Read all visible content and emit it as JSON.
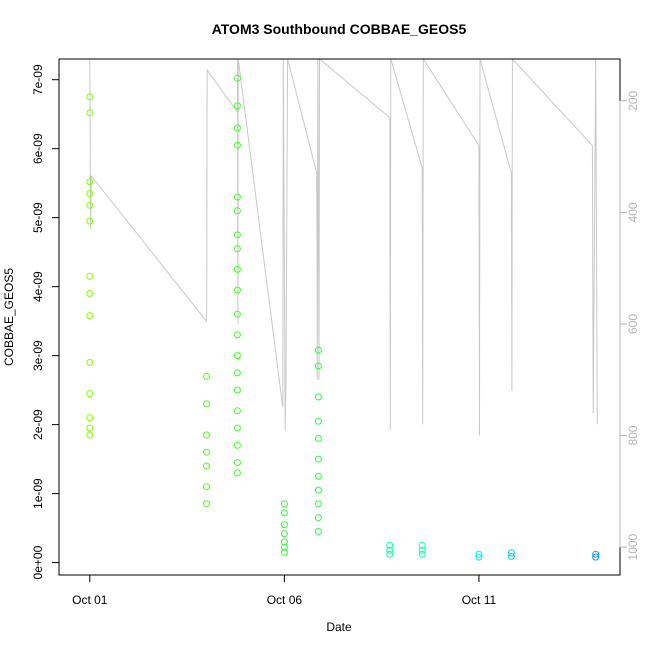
{
  "chart_data": {
    "type": "scatter",
    "title": "ATOM3 Southbound COBBAE_GEOS5",
    "xlabel": "Date",
    "ylabel": "COBBAE_GEOS5",
    "x_ticks": [
      {
        "value": "2016-10-01",
        "label": "Oct 01"
      },
      {
        "value": "2016-10-06",
        "label": "Oct 06"
      },
      {
        "value": "2016-10-11",
        "label": "Oct 11"
      }
    ],
    "y_ticks": [
      {
        "value": 0,
        "label": "0e+00"
      },
      {
        "value": 1e-09,
        "label": "1e-09"
      },
      {
        "value": 2e-09,
        "label": "2e-09"
      },
      {
        "value": 3e-09,
        "label": "3e-09"
      },
      {
        "value": 4e-09,
        "label": "4e-09"
      },
      {
        "value": 5e-09,
        "label": "5e-09"
      },
      {
        "value": 6e-09,
        "label": "6e-09"
      },
      {
        "value": 7e-09,
        "label": "7e-09"
      }
    ],
    "right_axis_ticks": [
      {
        "value": 200,
        "label": "200"
      },
      {
        "value": 400,
        "label": "400"
      },
      {
        "value": 600,
        "label": "600"
      },
      {
        "value": 800,
        "label": "800"
      },
      {
        "value": 1000,
        "label": "1000"
      }
    ],
    "xlim": [
      "2016-09-30T05:00",
      "2016-10-14T15:00"
    ],
    "ylim": [
      -1.8e-10,
      7.3e-09
    ],
    "right_ylim": [
      1050,
      125
    ],
    "right_axis_reversed": true,
    "grid": false,
    "colors": {
      "right_axis": "#b4b4b4",
      "pressure_line": "#c8c8c8",
      "frame": "#000000"
    },
    "series": [
      {
        "role": "scatter",
        "marker": "open-circle",
        "points": [
          {
            "t": "2016-10-01T00:00",
            "y": 6.75e-09,
            "color": "#7fff00"
          },
          {
            "t": "2016-10-01T00:00",
            "y": 6.52e-09,
            "color": "#7fff00"
          },
          {
            "t": "2016-10-01T00:00",
            "y": 5.52e-09,
            "color": "#7fff00"
          },
          {
            "t": "2016-10-01T00:00",
            "y": 5.35e-09,
            "color": "#7fff00"
          },
          {
            "t": "2016-10-01T00:00",
            "y": 5.18e-09,
            "color": "#7fff00"
          },
          {
            "t": "2016-10-01T00:00",
            "y": 4.95e-09,
            "color": "#7fff00"
          },
          {
            "t": "2016-10-01T00:00",
            "y": 4.15e-09,
            "color": "#7fff00"
          },
          {
            "t": "2016-10-01T00:00",
            "y": 3.9e-09,
            "color": "#7fff00"
          },
          {
            "t": "2016-10-01T00:00",
            "y": 3.58e-09,
            "color": "#7fff00"
          },
          {
            "t": "2016-10-01T00:00",
            "y": 2.9e-09,
            "color": "#7fff00"
          },
          {
            "t": "2016-10-01T00:00",
            "y": 2.45e-09,
            "color": "#7fff00"
          },
          {
            "t": "2016-10-01T00:00",
            "y": 2.1e-09,
            "color": "#7fff00"
          },
          {
            "t": "2016-10-01T00:00",
            "y": 1.95e-09,
            "color": "#7fff00"
          },
          {
            "t": "2016-10-01T00:00",
            "y": 1.85e-09,
            "color": "#7fff00"
          },
          {
            "t": "2016-10-04T00:00",
            "y": 2.7e-09,
            "color": "#4cff10"
          },
          {
            "t": "2016-10-04T00:00",
            "y": 2.3e-09,
            "color": "#4cff10"
          },
          {
            "t": "2016-10-04T00:00",
            "y": 1.85e-09,
            "color": "#4cff10"
          },
          {
            "t": "2016-10-04T00:00",
            "y": 1.6e-09,
            "color": "#4cff10"
          },
          {
            "t": "2016-10-04T00:00",
            "y": 1.4e-09,
            "color": "#4cff10"
          },
          {
            "t": "2016-10-04T00:00",
            "y": 1.1e-09,
            "color": "#4cff10"
          },
          {
            "t": "2016-10-04T00:00",
            "y": 8.5e-10,
            "color": "#4cff10"
          },
          {
            "t": "2016-10-04T19:00",
            "y": 7.02e-09,
            "color": "#3dff20"
          },
          {
            "t": "2016-10-04T19:00",
            "y": 6.62e-09,
            "color": "#3dff20"
          },
          {
            "t": "2016-10-04T19:00",
            "y": 6.3e-09,
            "color": "#3dff20"
          },
          {
            "t": "2016-10-04T19:00",
            "y": 6.05e-09,
            "color": "#3dff20"
          },
          {
            "t": "2016-10-04T19:00",
            "y": 5.3e-09,
            "color": "#3dff20"
          },
          {
            "t": "2016-10-04T19:00",
            "y": 5.1e-09,
            "color": "#3dff20"
          },
          {
            "t": "2016-10-04T19:00",
            "y": 4.75e-09,
            "color": "#3dff20"
          },
          {
            "t": "2016-10-04T19:00",
            "y": 4.55e-09,
            "color": "#3dff20"
          },
          {
            "t": "2016-10-04T19:00",
            "y": 4.25e-09,
            "color": "#3dff20"
          },
          {
            "t": "2016-10-04T19:00",
            "y": 3.95e-09,
            "color": "#3dff20"
          },
          {
            "t": "2016-10-04T19:00",
            "y": 3.6e-09,
            "color": "#3dff20"
          },
          {
            "t": "2016-10-04T19:00",
            "y": 3.3e-09,
            "color": "#3dff20"
          },
          {
            "t": "2016-10-04T19:00",
            "y": 3e-09,
            "color": "#3dff20"
          },
          {
            "t": "2016-10-04T19:00",
            "y": 2.75e-09,
            "color": "#3dff20"
          },
          {
            "t": "2016-10-04T19:00",
            "y": 2.5e-09,
            "color": "#3dff20"
          },
          {
            "t": "2016-10-04T19:00",
            "y": 2.2e-09,
            "color": "#3dff20"
          },
          {
            "t": "2016-10-04T19:00",
            "y": 1.95e-09,
            "color": "#3dff20"
          },
          {
            "t": "2016-10-04T19:00",
            "y": 1.7e-09,
            "color": "#3dff20"
          },
          {
            "t": "2016-10-04T19:00",
            "y": 1.45e-09,
            "color": "#3dff20"
          },
          {
            "t": "2016-10-04T19:00",
            "y": 1.3e-09,
            "color": "#3dff20"
          },
          {
            "t": "2016-10-06T00:00",
            "y": 8.5e-10,
            "color": "#2fff35"
          },
          {
            "t": "2016-10-06T00:00",
            "y": 7.2e-10,
            "color": "#2fff35"
          },
          {
            "t": "2016-10-06T00:00",
            "y": 5.5e-10,
            "color": "#2fff35"
          },
          {
            "t": "2016-10-06T00:00",
            "y": 4.2e-10,
            "color": "#2fff35"
          },
          {
            "t": "2016-10-06T00:00",
            "y": 3e-10,
            "color": "#2fff35"
          },
          {
            "t": "2016-10-06T00:00",
            "y": 2.2e-10,
            "color": "#2fff35"
          },
          {
            "t": "2016-10-06T00:00",
            "y": 1.5e-10,
            "color": "#2fff35"
          },
          {
            "t": "2016-10-06T21:00",
            "y": 3.08e-09,
            "color": "#28ff45"
          },
          {
            "t": "2016-10-06T21:00",
            "y": 2.85e-09,
            "color": "#28ff45"
          },
          {
            "t": "2016-10-06T21:00",
            "y": 2.4e-09,
            "color": "#28ff45"
          },
          {
            "t": "2016-10-06T21:00",
            "y": 2.05e-09,
            "color": "#28ff45"
          },
          {
            "t": "2016-10-06T21:00",
            "y": 1.8e-09,
            "color": "#28ff45"
          },
          {
            "t": "2016-10-06T21:00",
            "y": 1.5e-09,
            "color": "#28ff45"
          },
          {
            "t": "2016-10-06T21:00",
            "y": 1.25e-09,
            "color": "#28ff45"
          },
          {
            "t": "2016-10-06T21:00",
            "y": 1.05e-09,
            "color": "#28ff45"
          },
          {
            "t": "2016-10-06T21:00",
            "y": 8.5e-10,
            "color": "#28ff45"
          },
          {
            "t": "2016-10-06T21:00",
            "y": 6.5e-10,
            "color": "#28ff45"
          },
          {
            "t": "2016-10-06T21:00",
            "y": 4.5e-10,
            "color": "#28ff45"
          },
          {
            "t": "2016-10-08T17:00",
            "y": 2.5e-10,
            "color": "#00ff9a"
          },
          {
            "t": "2016-10-08T17:00",
            "y": 1.8e-10,
            "color": "#00ff9a"
          },
          {
            "t": "2016-10-08T17:00",
            "y": 1.2e-10,
            "color": "#00ff9a"
          },
          {
            "t": "2016-10-09T13:00",
            "y": 2.5e-10,
            "color": "#00ffa5"
          },
          {
            "t": "2016-10-09T13:00",
            "y": 1.8e-10,
            "color": "#00ffa5"
          },
          {
            "t": "2016-10-09T13:00",
            "y": 1.2e-10,
            "color": "#00ffa5"
          },
          {
            "t": "2016-10-11T00:00",
            "y": 1.2e-10,
            "color": "#00e6ff"
          },
          {
            "t": "2016-10-11T00:00",
            "y": 8e-11,
            "color": "#00e6ff"
          },
          {
            "t": "2016-10-11T20:00",
            "y": 1.4e-10,
            "color": "#00d4ff"
          },
          {
            "t": "2016-10-11T20:00",
            "y": 9e-11,
            "color": "#00d4ff"
          },
          {
            "t": "2016-10-14T00:00",
            "y": 1.2e-10,
            "color": "#009cff"
          },
          {
            "t": "2016-10-14T00:00",
            "y": 8e-11,
            "color": "#009cff"
          }
        ]
      },
      {
        "role": "pressure-trace",
        "axis": "right",
        "color": "#c8c8c8",
        "points": [
          {
            "t": "2016-10-01T00:00",
            "p": 125
          },
          {
            "t": "2016-10-01T00:30",
            "p": 430
          },
          {
            "t": "2016-10-01T01:00",
            "p": 335
          },
          {
            "t": "2016-10-04T00:00",
            "p": 595
          },
          {
            "t": "2016-10-04T00:10",
            "p": 540
          },
          {
            "t": "2016-10-04T00:20",
            "p": 145
          },
          {
            "t": "2016-10-04T19:00",
            "p": 220
          },
          {
            "t": "2016-10-04T19:10",
            "p": 125
          },
          {
            "t": "2016-10-04T19:20",
            "p": 600
          },
          {
            "t": "2016-10-04T19:30",
            "p": 125
          },
          {
            "t": "2016-10-05T23:00",
            "p": 750
          },
          {
            "t": "2016-10-05T23:20",
            "p": 125
          },
          {
            "t": "2016-10-06T00:30",
            "p": 790
          },
          {
            "t": "2016-10-06T01:00",
            "p": 700
          },
          {
            "t": "2016-10-06T02:00",
            "p": 125
          },
          {
            "t": "2016-10-06T20:00",
            "p": 330
          },
          {
            "t": "2016-10-06T20:20",
            "p": 700
          },
          {
            "t": "2016-10-06T20:40",
            "p": 125
          },
          {
            "t": "2016-10-06T21:20",
            "p": 700
          },
          {
            "t": "2016-10-06T21:40",
            "p": 125
          },
          {
            "t": "2016-10-08T17:00",
            "p": 230
          },
          {
            "t": "2016-10-08T17:20",
            "p": 790
          },
          {
            "t": "2016-10-08T17:40",
            "p": 125
          },
          {
            "t": "2016-10-09T13:00",
            "p": 320
          },
          {
            "t": "2016-10-09T13:20",
            "p": 780
          },
          {
            "t": "2016-10-09T13:40",
            "p": 125
          },
          {
            "t": "2016-10-11T00:00",
            "p": 280
          },
          {
            "t": "2016-10-11T00:20",
            "p": 800
          },
          {
            "t": "2016-10-11T00:40",
            "p": 125
          },
          {
            "t": "2016-10-11T20:00",
            "p": 330
          },
          {
            "t": "2016-10-11T20:20",
            "p": 720
          },
          {
            "t": "2016-10-11T20:40",
            "p": 125
          },
          {
            "t": "2016-10-13T22:00",
            "p": 280
          },
          {
            "t": "2016-10-13T22:30",
            "p": 760
          },
          {
            "t": "2016-10-14T00:00",
            "p": 125
          },
          {
            "t": "2016-10-14T01:00",
            "p": 780
          }
        ]
      }
    ]
  }
}
